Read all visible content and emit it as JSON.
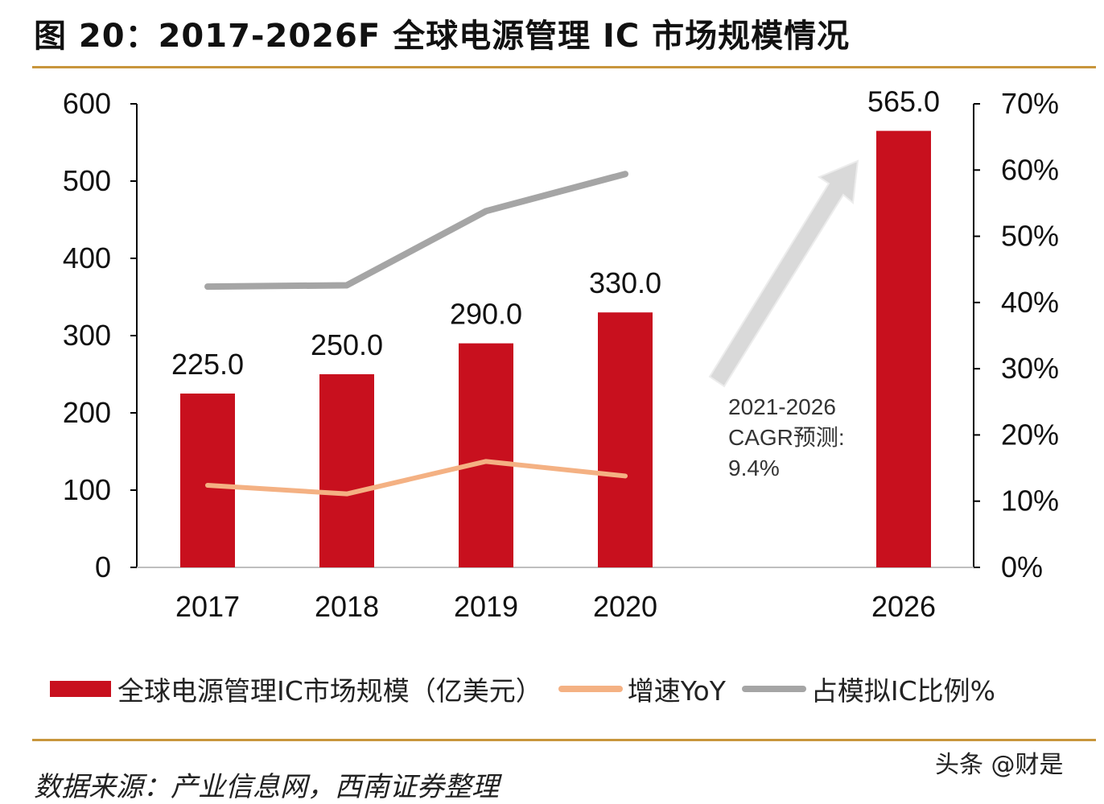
{
  "title": "图 20：2017-2026F 全球电源管理 IC 市场规模情况",
  "chart_data": {
    "type": "bar",
    "categories": [
      "2017",
      "2018",
      "2019",
      "2020",
      "2026"
    ],
    "series": [
      {
        "name": "全球电源管理IC市场规模（亿美元）",
        "type": "bar",
        "axis": "left",
        "color": "#c8101e",
        "values": [
          225.0,
          250.0,
          290.0,
          330.0,
          565.0
        ],
        "labels": [
          "225.0",
          "250.0",
          "290.0",
          "330.0",
          "565.0"
        ]
      },
      {
        "name": "增速YoY",
        "type": "line",
        "axis": "right",
        "color": "#f4b183",
        "values": [
          12.4,
          11.1,
          16.0,
          13.8,
          null
        ]
      },
      {
        "name": "占模拟IC比例%",
        "type": "line",
        "axis": "right",
        "color": "#a5a5a5",
        "values": [
          42.4,
          42.6,
          53.8,
          59.4,
          null
        ]
      }
    ],
    "left_axis": {
      "ylim": [
        0,
        600
      ],
      "ticks": [
        "0",
        "100",
        "200",
        "300",
        "400",
        "500",
        "600"
      ]
    },
    "right_axis": {
      "ylim": [
        0,
        70
      ],
      "ticks": [
        "0%",
        "10%",
        "20%",
        "30%",
        "40%",
        "50%",
        "60%",
        "70%"
      ]
    },
    "annotation": {
      "lines": [
        "2021-2026",
        "CAGR预测:",
        "9.4%"
      ],
      "arrow_color": "#d9d9d9"
    },
    "grid": false,
    "legend_position": "bottom"
  },
  "source": "数据来源：产业信息网，西南证券整理",
  "watermark": "头条 @财是"
}
